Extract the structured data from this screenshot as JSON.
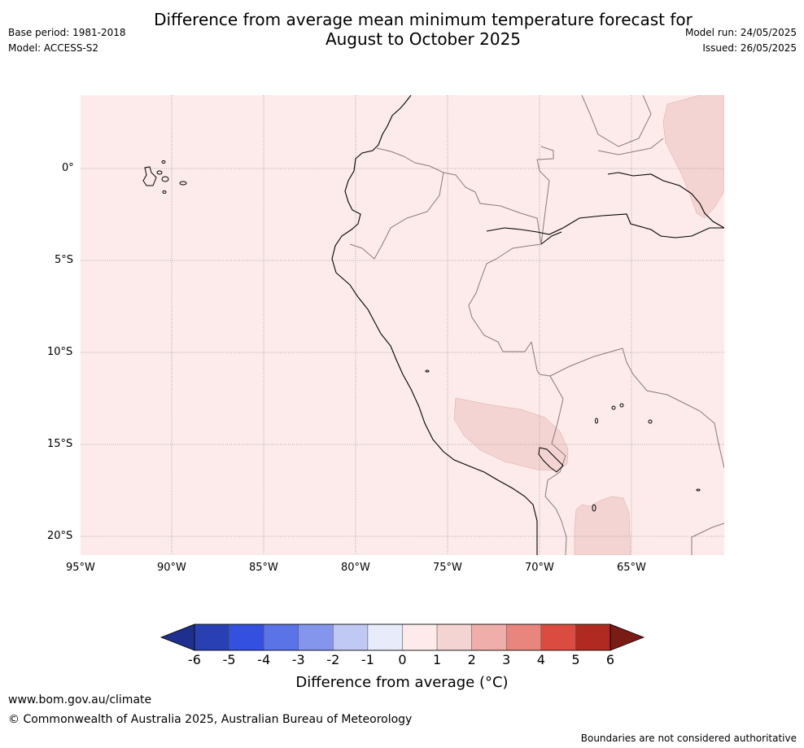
{
  "header": {
    "title_line1": "Difference from average mean minimum temperature forecast for",
    "title_line2": "August to October 2025",
    "base_period": "Base period: 1981-2018",
    "model": "Model: ACCESS-S2",
    "model_run": "Model run: 24/05/2025",
    "issued": "Issued: 26/05/2025"
  },
  "map": {
    "region": "Western South America",
    "lon_labels": [
      "95°W",
      "90°W",
      "85°W",
      "80°W",
      "75°W",
      "70°W",
      "65°W"
    ],
    "lat_labels": [
      "0°",
      "5°S",
      "10°S",
      "15°S",
      "20°S"
    ],
    "background_anomaly_class": "0 to 1",
    "warm_patches_class": "1 to 2",
    "colors": {
      "class_0_1": "#fcebea",
      "class_1_2": "#f4d4d3",
      "coastline": "#000000",
      "borders": "#8a7a7a",
      "grid": "#999999"
    }
  },
  "colorbar": {
    "title": "Difference from average (°C)",
    "ticks": [
      "-6",
      "-5",
      "-4",
      "-3",
      "-2",
      "-1",
      "0",
      "1",
      "2",
      "3",
      "4",
      "5",
      "6"
    ],
    "colors": [
      "#1f2f8f",
      "#2940b4",
      "#3350e0",
      "#5a73e6",
      "#8396ec",
      "#c0c8f4",
      "#e8ebfa",
      "#fcebea",
      "#f4d4d3",
      "#f0aeaa",
      "#e8867e",
      "#dc4b3f",
      "#b02a22",
      "#7a1c16"
    ]
  },
  "footer": {
    "url": "www.bom.gov.au/climate",
    "copyright": "© Commonwealth of Australia 2025, Australian Bureau of Meteorology",
    "disclaimer": "Boundaries are not considered authoritative"
  }
}
